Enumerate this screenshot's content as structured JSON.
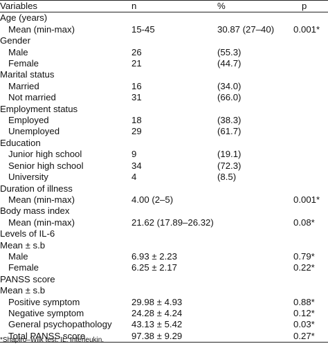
{
  "header": {
    "variables": "Variables",
    "n": "n",
    "percent": "%",
    "p": "p"
  },
  "rows": [
    {
      "type": "section",
      "label": "Age (years)",
      "n": "",
      "pct": "",
      "p": ""
    },
    {
      "type": "item",
      "label": "Mean (min-max)",
      "n": "15-45",
      "pct": "30.87 (27–40)",
      "p": "0.001*"
    },
    {
      "type": "section",
      "label": "Gender",
      "n": "",
      "pct": "",
      "p": ""
    },
    {
      "type": "item",
      "label": "Male",
      "n": "26",
      "pct": "(55.3)",
      "p": ""
    },
    {
      "type": "item",
      "label": "Female",
      "n": "21",
      "pct": "(44.7)",
      "p": ""
    },
    {
      "type": "section",
      "label": "Marital status",
      "n": "",
      "pct": "",
      "p": ""
    },
    {
      "type": "item",
      "label": "Married",
      "n": "16",
      "pct": "(34.0)",
      "p": ""
    },
    {
      "type": "item",
      "label": "Not married",
      "n": "31",
      "pct": "(66.0)",
      "p": ""
    },
    {
      "type": "section",
      "label": "Employment status",
      "n": "",
      "pct": "",
      "p": ""
    },
    {
      "type": "item",
      "label": "Employed",
      "n": "18",
      "pct": "(38.3)",
      "p": ""
    },
    {
      "type": "item",
      "label": "Unemployed",
      "n": "29",
      "pct": "(61.7)",
      "p": ""
    },
    {
      "type": "section",
      "label": "Education",
      "n": "",
      "pct": "",
      "p": ""
    },
    {
      "type": "item",
      "label": "Junior high school",
      "n": "9",
      "pct": "(19.1)",
      "p": ""
    },
    {
      "type": "item",
      "label": "Senior high school",
      "n": "34",
      "pct": "(72.3)",
      "p": ""
    },
    {
      "type": "item",
      "label": "University",
      "n": "4",
      "pct": "(8.5)",
      "p": ""
    },
    {
      "type": "section",
      "label": "Duration of illness",
      "n": "",
      "pct": "",
      "p": ""
    },
    {
      "type": "item",
      "label": "Mean (min-max)",
      "n": "4.00 (2–5)",
      "pct": "",
      "p": "0.001*"
    },
    {
      "type": "section",
      "label": "Body mass index",
      "n": "",
      "pct": "",
      "p": ""
    },
    {
      "type": "item",
      "label": "Mean (min-max)",
      "n": "21.62 (17.89–26.32)",
      "pct": "",
      "p": "0.08*"
    },
    {
      "type": "section",
      "label": "Levels of IL-6",
      "n": "",
      "pct": "",
      "p": ""
    },
    {
      "type": "section",
      "label": "Mean ± s.b",
      "n": "",
      "pct": "",
      "p": ""
    },
    {
      "type": "item",
      "label": "Male",
      "n": "6.93 ± 2.23",
      "pct": "",
      "p": "0.79*"
    },
    {
      "type": "item",
      "label": "Female",
      "n": "6.25 ± 2.17",
      "pct": "",
      "p": "0.22*"
    },
    {
      "type": "section",
      "label": "PANSS score",
      "n": "",
      "pct": "",
      "p": ""
    },
    {
      "type": "section",
      "label": "Mean ± s.b",
      "n": "",
      "pct": "",
      "p": ""
    },
    {
      "type": "item",
      "label": "Positive symptom",
      "n": "29.98 ± 4.93",
      "pct": "",
      "p": "0.88*"
    },
    {
      "type": "item",
      "label": "Negative symptom",
      "n": "24.28 ± 4.24",
      "pct": "",
      "p": "0.12*"
    },
    {
      "type": "item",
      "label": "General psychopathology",
      "n": "43.13 ± 5.42",
      "pct": "",
      "p": "0.03*"
    },
    {
      "type": "item",
      "label": "Total PANSS score",
      "n": "97.38 ± 9.29",
      "pct": "",
      "p": "0.27*"
    }
  ],
  "footnote": "*Shapiro–Wilk test. IL: Interleukin."
}
